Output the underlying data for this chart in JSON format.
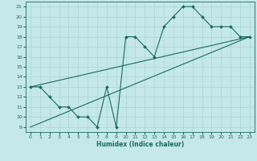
{
  "xlabel": "Humidex (Indice chaleur)",
  "bg_color": "#c5e8e8",
  "line_color": "#1a6b60",
  "grid_color": "#b0d8d8",
  "xlim": [
    -0.5,
    23.5
  ],
  "ylim": [
    8.5,
    21.5
  ],
  "xticks": [
    0,
    1,
    2,
    3,
    4,
    5,
    6,
    7,
    8,
    9,
    10,
    11,
    12,
    13,
    14,
    15,
    16,
    17,
    18,
    19,
    20,
    21,
    22,
    23
  ],
  "yticks": [
    9,
    10,
    11,
    12,
    13,
    14,
    15,
    16,
    17,
    18,
    19,
    20,
    21
  ],
  "line1_x": [
    0,
    1,
    2,
    3,
    4,
    5,
    6,
    7,
    8,
    9,
    10,
    11,
    12,
    13,
    14,
    15,
    16,
    17,
    18,
    19,
    20,
    21,
    22,
    23
  ],
  "line1_y": [
    13,
    13,
    12,
    11,
    11,
    10,
    10,
    9,
    13,
    9,
    18,
    18,
    17,
    16,
    19,
    20,
    21,
    21,
    20,
    19,
    19,
    19,
    18,
    18
  ],
  "line2_x": [
    0,
    23
  ],
  "line2_y": [
    13,
    18
  ],
  "line3_x": [
    0,
    23
  ],
  "line3_y": [
    9,
    18
  ]
}
